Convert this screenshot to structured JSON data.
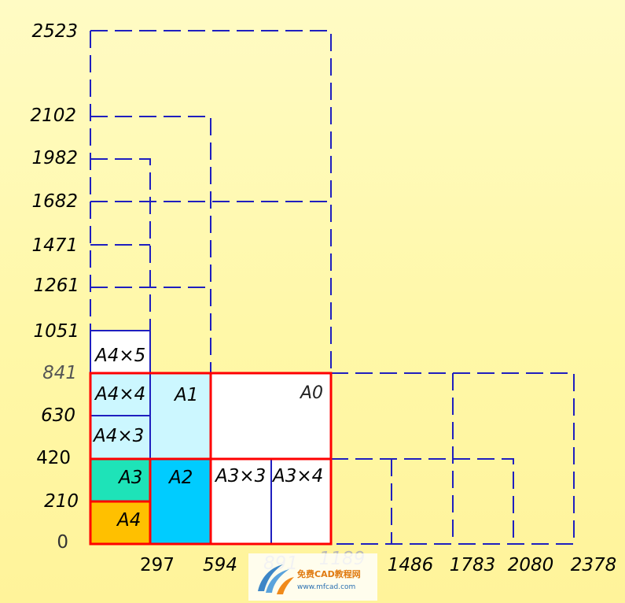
{
  "diagram": {
    "y_labels": [
      "0",
      "210",
      "420",
      "630",
      "841",
      "1051",
      "1261",
      "1471",
      "1682",
      "1982",
      "2102",
      "2523"
    ],
    "x_labels": [
      "297",
      "594",
      "891",
      "1189",
      "1486",
      "1783",
      "2080",
      "2378"
    ],
    "sheets": {
      "a4": "A4",
      "a3": "A3",
      "a2": "A2",
      "a1": "A1",
      "a0": "A0",
      "a3x3": "A3×3",
      "a3x4": "A3×4",
      "a4x3": "A4×3",
      "a4x4": "A4×4",
      "a4x5": "A4×5"
    },
    "colors": {
      "a4_fill": "#ffc000",
      "a3_fill": "#1ee3b8",
      "a2_fill": "#00ccff",
      "a1_fill": "#ccf7ff",
      "a0_fill": "#ffffff",
      "outline_red": "#ff0000",
      "line_blue": "#1f1fbf"
    }
  },
  "watermark": {
    "brand": "免费CAD教程网",
    "url": "www.mfcad.com"
  }
}
